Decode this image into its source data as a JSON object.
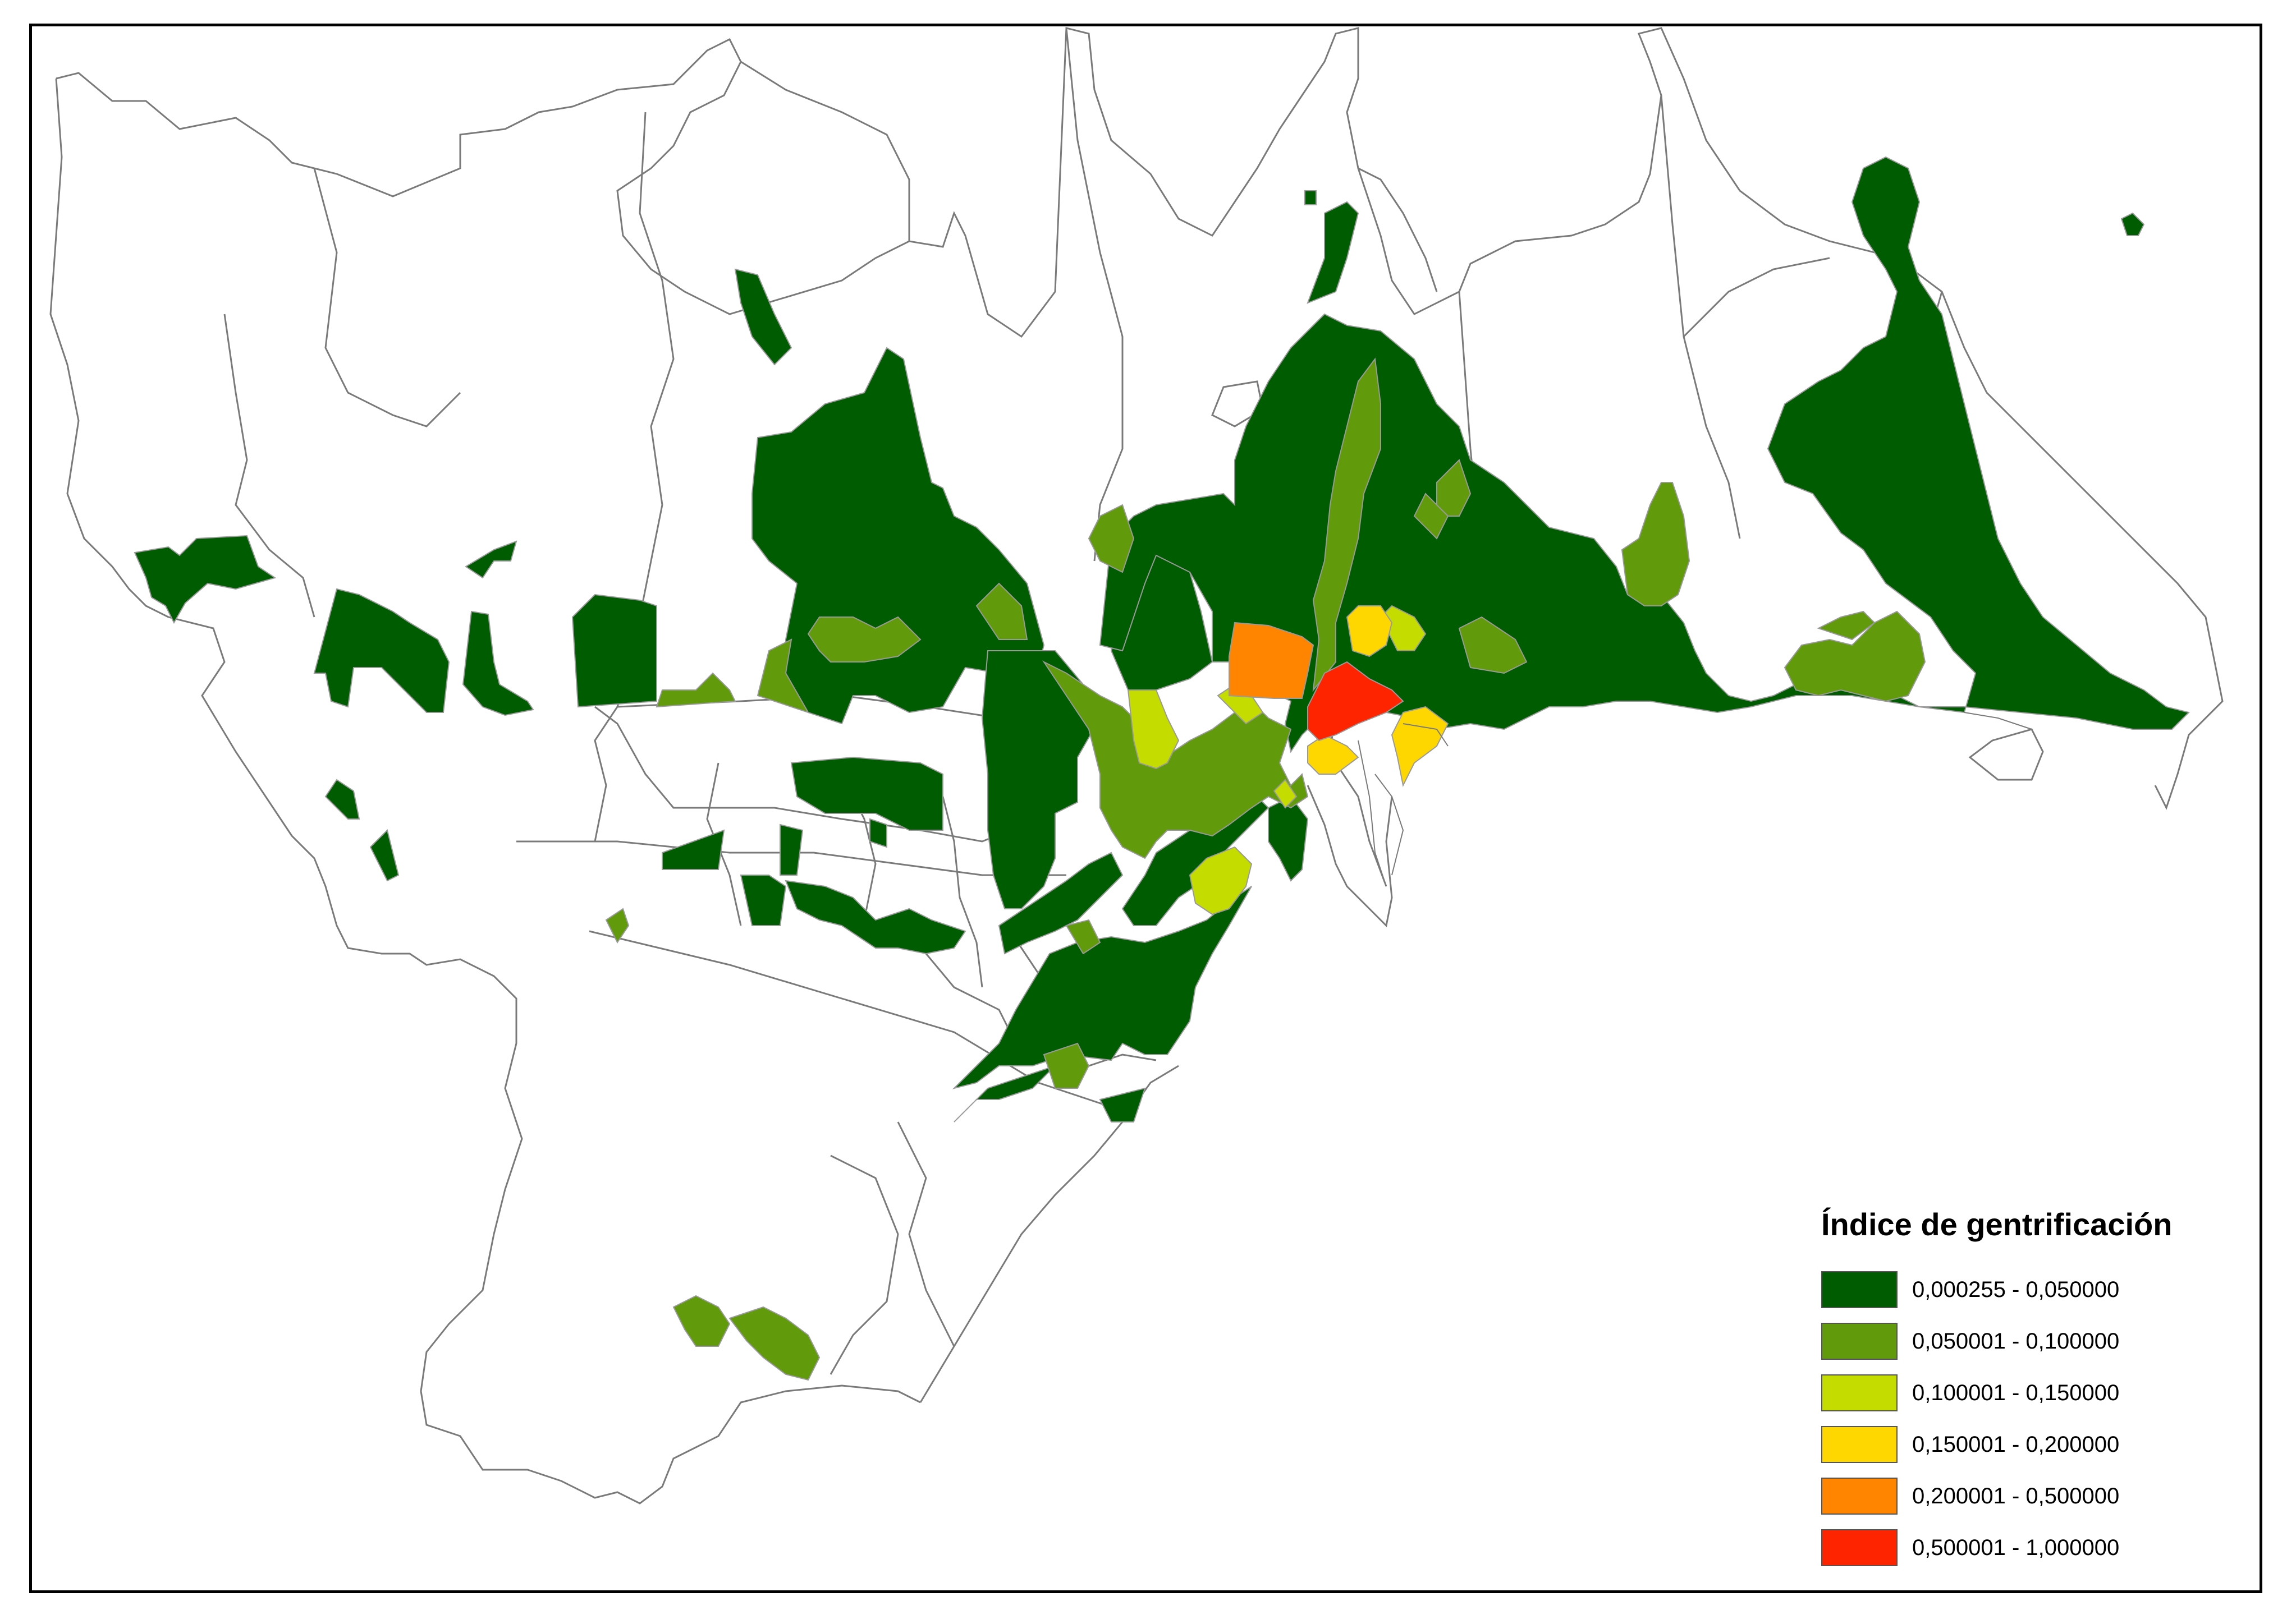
{
  "legend": {
    "title": "Índice de gentrificación",
    "classes": [
      {
        "label": "0,000255 - 0,050000",
        "color": "#005c00"
      },
      {
        "label": "0,050001 - 0,100000",
        "color": "#619a0a"
      },
      {
        "label": "0,100001 - 0,150000",
        "color": "#c4dc00"
      },
      {
        "label": "0,150001 - 0,200000",
        "color": "#ffd700"
      },
      {
        "label": "0,200001 - 0,500000",
        "color": "#ff8400"
      },
      {
        "label": "0,500001 - 1,000000",
        "color": "#ff2400"
      }
    ]
  },
  "colors": {
    "outline": "#7a7a7a",
    "background": "#ffffff",
    "frame": "#000000"
  }
}
